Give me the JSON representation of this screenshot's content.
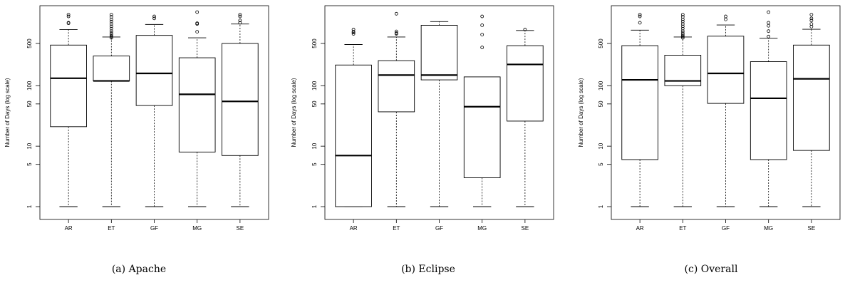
{
  "chart_data": [
    {
      "type": "boxplot",
      "caption": "(a) Apache",
      "ylabel": "Number of Days (log scale)",
      "yscale": "log",
      "ylim": [
        0.85,
        2800
      ],
      "yticks": [
        1,
        5,
        10,
        50,
        100,
        500
      ],
      "categories": [
        "AR",
        "ET",
        "GF",
        "MG",
        "SE"
      ],
      "boxes": [
        {
          "min": 1,
          "q1": 21,
          "median": 133,
          "q3": 470,
          "max": 850,
          "outliers": [
            1500,
            1400,
            1100,
            1080
          ]
        },
        {
          "min": 1,
          "q1": 120,
          "median": 120,
          "q3": 310,
          "max": 640,
          "outliers": [
            620,
            650,
            690,
            740,
            800,
            880,
            960,
            1050,
            1150,
            1250,
            1380,
            1500
          ]
        },
        {
          "min": 1,
          "q1": 47,
          "median": 160,
          "q3": 680,
          "max": 1030,
          "outliers": [
            1400,
            1300
          ]
        },
        {
          "min": 1,
          "q1": 8,
          "median": 72,
          "q3": 290,
          "max": 620,
          "outliers": [
            1650,
            1080,
            1050,
            780
          ]
        },
        {
          "min": 1,
          "q1": 7,
          "median": 55,
          "q3": 500,
          "max": 1050,
          "outliers": [
            1100,
            1200,
            1400,
            1500
          ]
        }
      ]
    },
    {
      "type": "boxplot",
      "caption": "(b) Eclipse",
      "ylabel": "Number of Days (log scale)",
      "yscale": "log",
      "ylim": [
        0.85,
        2800
      ],
      "yticks": [
        1,
        5,
        10,
        50,
        100,
        500
      ],
      "categories": [
        "AR",
        "ET",
        "GF",
        "MG",
        "SE"
      ],
      "boxes": [
        {
          "min": 1,
          "q1": 1,
          "median": 7,
          "q3": 220,
          "max": 480,
          "outliers": [
            720,
            760,
            780,
            850
          ]
        },
        {
          "min": 1,
          "q1": 37,
          "median": 150,
          "q3": 260,
          "max": 640,
          "outliers": [
            720,
            740,
            790,
            1550
          ]
        },
        {
          "min": 1,
          "q1": 125,
          "median": 150,
          "q3": 1000,
          "max": 1150,
          "outliers": []
        },
        {
          "min": 1,
          "q1": 3,
          "median": 45,
          "q3": 140,
          "max": 140,
          "outliers": [
            1400,
            1000,
            700,
            430
          ]
        },
        {
          "min": 1,
          "q1": 26,
          "median": 225,
          "q3": 460,
          "max": 820,
          "outliers": [
            850
          ]
        }
      ]
    },
    {
      "type": "boxplot",
      "caption": "(c) Overall",
      "ylabel": "Number of Days (log scale)",
      "yscale": "log",
      "ylim": [
        0.85,
        2800
      ],
      "yticks": [
        1,
        5,
        10,
        50,
        100,
        500
      ],
      "categories": [
        "AR",
        "ET",
        "GF",
        "MG",
        "SE"
      ],
      "boxes": [
        {
          "min": 1,
          "q1": 6,
          "median": 125,
          "q3": 460,
          "max": 830,
          "outliers": [
            1500,
            1400,
            1100
          ]
        },
        {
          "min": 1,
          "q1": 100,
          "median": 120,
          "q3": 320,
          "max": 640,
          "outliers": [
            620,
            650,
            690,
            740,
            800,
            880,
            960,
            1050,
            1150,
            1250,
            1380,
            1500
          ]
        },
        {
          "min": 1,
          "q1": 51,
          "median": 160,
          "q3": 660,
          "max": 1010,
          "outliers": [
            1250,
            1400
          ]
        },
        {
          "min": 1,
          "q1": 6,
          "median": 62,
          "q3": 250,
          "max": 610,
          "outliers": [
            1650,
            1100,
            980,
            800,
            650
          ]
        },
        {
          "min": 1,
          "q1": 8.5,
          "median": 130,
          "q3": 470,
          "max": 860,
          "outliers": [
            950,
            1050,
            1200,
            1300,
            1500
          ]
        }
      ]
    }
  ]
}
